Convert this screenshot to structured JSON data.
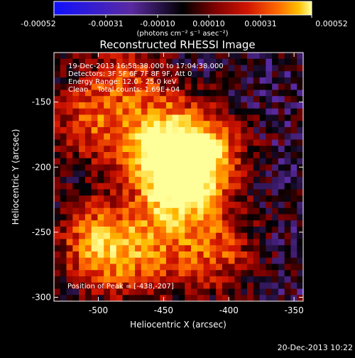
{
  "colorbar": {
    "ticks": [
      "-0.00052",
      "-0.00031",
      "-0.00010",
      "0.00010",
      "0.00031",
      "0.00052"
    ],
    "unit_label": "(photons cm⁻² s⁻¹ asec⁻²)"
  },
  "title": "Reconstructed RHESSI Image",
  "info": {
    "line1": "19-Dec-2013 16:58:38.000 to 17:04:38.000",
    "line2": "Detectors: 3F 5F 6F 7F 8F 9F, Att 0",
    "line3": "Energy Range: 12.0 - 25.0 keV",
    "line4": "Clean    Total counts: 1.69E+04"
  },
  "peak_label": "Position of Peak = [-438,-207]",
  "footer_timestamp": "20-Dec-2013 10:22",
  "colors": {
    "background": "#000000",
    "positive_ramp": [
      "#000000",
      "#7a0000",
      "#d01400",
      "#ff6a00",
      "#ffc000",
      "#ffff9a"
    ],
    "negative_ramp": [
      "#000000",
      "#5a2aa0",
      "#2020ff"
    ]
  },
  "chart_data": {
    "type": "heatmap",
    "title": "Reconstructed RHESSI Image",
    "xlabel": "Heliocentric X (arcsec)",
    "ylabel": "Heliocentric Y (arcsec)",
    "xlim": [
      -534,
      -343
    ],
    "ylim": [
      -303,
      -112
    ],
    "xticks": [
      -500,
      -450,
      -400,
      -350
    ],
    "xtick_labels": [
      "-500",
      "-450",
      "-400",
      "-350"
    ],
    "yticks": [
      -150,
      -200,
      -250,
      -300
    ],
    "ytick_labels": [
      "-150",
      "-200",
      "-250",
      "-300"
    ],
    "color_range": [
      -0.00052,
      0.00052
    ],
    "grid_size": [
      40,
      40
    ],
    "peak_position": [
      -438,
      -207
    ],
    "sources": [
      {
        "x": -438,
        "y": -207,
        "amplitude": 0.00052
      },
      {
        "x": -452,
        "y": -178,
        "amplitude": 0.00038
      },
      {
        "x": -420,
        "y": -190,
        "amplitude": 0.00033
      },
      {
        "x": -498,
        "y": -258,
        "amplitude": 0.0004
      },
      {
        "x": -505,
        "y": -165,
        "amplitude": 0.00026
      },
      {
        "x": -478,
        "y": -128,
        "amplitude": 0.0002
      },
      {
        "x": -410,
        "y": -265,
        "amplitude": 0.00025
      },
      {
        "x": -465,
        "y": -275,
        "amplitude": 0.0002
      },
      {
        "x": -445,
        "y": -240,
        "amplitude": 0.00018
      }
    ]
  }
}
